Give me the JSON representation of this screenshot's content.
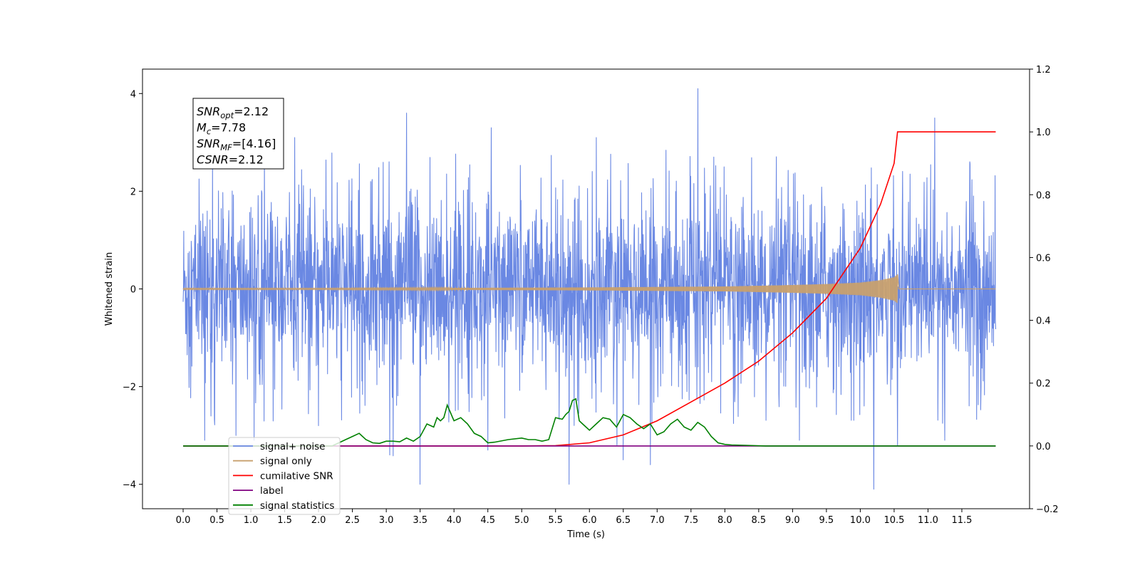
{
  "chart_data": {
    "type": "line",
    "xlabel": "Time (s)",
    "ylabel": "Whitened strain",
    "xlim": [
      -0.6,
      12.5
    ],
    "ylim": [
      -4.5,
      4.5
    ],
    "y2lim": [
      -0.2,
      1.2
    ],
    "x_ticks": [
      "0.0",
      "0.5",
      "1.0",
      "1.5",
      "2.0",
      "2.5",
      "3.0",
      "3.5",
      "4.0",
      "4.5",
      "5.0",
      "5.5",
      "6.0",
      "6.5",
      "7.0",
      "7.5",
      "8.0",
      "8.5",
      "9.0",
      "9.5",
      "10.0",
      "10.5",
      "11.0",
      "11.5"
    ],
    "y_ticks": [
      "−4",
      "−2",
      "0",
      "2",
      "4"
    ],
    "y2_ticks": [
      "−0.2",
      "0.0",
      "0.2",
      "0.4",
      "0.6",
      "0.8",
      "1.0",
      "1.2"
    ],
    "grid": false,
    "legend_position": "lower-left",
    "annotation": {
      "lines": [
        {
          "sym": "SNR",
          "sub": "opt",
          "value": "=2.12"
        },
        {
          "sym": "M",
          "sub": "c",
          "value": "=7.78"
        },
        {
          "sym": "SNR",
          "sub": "MF",
          "value": "=[4.16]"
        },
        {
          "sym": "CSNR",
          "sub": "",
          "value": "=2.12"
        }
      ]
    },
    "series": [
      {
        "name": "signal+ noise",
        "color": "#6a88e3",
        "axis": "left",
        "x_range": [
          0.0,
          12.0
        ],
        "peaks": [
          {
            "x": 0.32,
            "y": -3.1
          },
          {
            "x": 0.78,
            "y": -3.0
          },
          {
            "x": 1.05,
            "y": -3.1
          },
          {
            "x": 1.2,
            "y": 2.9
          },
          {
            "x": 1.65,
            "y": 3.1
          },
          {
            "x": 2.0,
            "y": -2.8
          },
          {
            "x": 3.05,
            "y": -3.4
          },
          {
            "x": 3.3,
            "y": 3.6
          },
          {
            "x": 3.5,
            "y": -4.0
          },
          {
            "x": 4.55,
            "y": 3.3
          },
          {
            "x": 4.5,
            "y": -3.3
          },
          {
            "x": 5.7,
            "y": -4.0
          },
          {
            "x": 6.1,
            "y": 3.1
          },
          {
            "x": 6.5,
            "y": -3.5
          },
          {
            "x": 6.9,
            "y": -3.6
          },
          {
            "x": 7.6,
            "y": 4.1
          },
          {
            "x": 9.1,
            "y": -3.1
          },
          {
            "x": 10.2,
            "y": -4.1
          },
          {
            "x": 10.55,
            "y": -3.2
          },
          {
            "x": 11.1,
            "y": 3.5
          },
          {
            "x": 11.25,
            "y": -3.1
          }
        ]
      },
      {
        "name": "signal only",
        "color": "#c8a06e",
        "axis": "left",
        "x": [
          0.0,
          2.0,
          4.0,
          6.0,
          8.0,
          9.0,
          9.5,
          10.0,
          10.3,
          10.5,
          10.55
        ],
        "amplitude": [
          0.01,
          0.01,
          0.02,
          0.03,
          0.05,
          0.08,
          0.1,
          0.13,
          0.18,
          0.24,
          0.3
        ]
      },
      {
        "name": "cumilative SNR",
        "color": "#ff0000",
        "axis": "right",
        "x": [
          0.0,
          5.0,
          5.5,
          6.0,
          6.5,
          7.0,
          7.5,
          8.0,
          8.5,
          9.0,
          9.5,
          10.0,
          10.3,
          10.5,
          10.55,
          11.0,
          12.0
        ],
        "values": [
          0.0,
          0.0,
          0.001,
          0.01,
          0.035,
          0.08,
          0.14,
          0.2,
          0.27,
          0.36,
          0.47,
          0.63,
          0.77,
          0.9,
          1.0,
          1.0,
          1.0
        ]
      },
      {
        "name": "label",
        "color": "#800080",
        "axis": "right",
        "x": [
          0.0,
          12.0
        ],
        "values": [
          0.0,
          0.0
        ]
      },
      {
        "name": "signal statistics",
        "color": "#008000",
        "axis": "right",
        "x": [
          0.0,
          2.2,
          2.3,
          2.4,
          2.5,
          2.6,
          2.7,
          2.8,
          2.9,
          3.0,
          3.1,
          3.2,
          3.3,
          3.4,
          3.5,
          3.6,
          3.7,
          3.75,
          3.8,
          3.85,
          3.9,
          4.0,
          4.1,
          4.2,
          4.3,
          4.4,
          4.5,
          4.6,
          4.8,
          5.0,
          5.1,
          5.2,
          5.3,
          5.4,
          5.5,
          5.6,
          5.65,
          5.7,
          5.75,
          5.8,
          5.85,
          5.9,
          6.0,
          6.1,
          6.2,
          6.3,
          6.4,
          6.5,
          6.6,
          6.7,
          6.8,
          6.9,
          7.0,
          7.1,
          7.2,
          7.3,
          7.4,
          7.5,
          7.6,
          7.7,
          7.8,
          7.9,
          8.0,
          8.1,
          8.3,
          8.6,
          9.0,
          12.0
        ],
        "values": [
          0.0,
          0.0,
          0.01,
          0.02,
          0.03,
          0.04,
          0.02,
          0.01,
          0.008,
          0.015,
          0.015,
          0.013,
          0.025,
          0.015,
          0.03,
          0.07,
          0.06,
          0.09,
          0.08,
          0.09,
          0.13,
          0.08,
          0.09,
          0.07,
          0.04,
          0.03,
          0.01,
          0.012,
          0.02,
          0.025,
          0.02,
          0.02,
          0.015,
          0.02,
          0.09,
          0.085,
          0.1,
          0.11,
          0.145,
          0.15,
          0.08,
          0.07,
          0.05,
          0.07,
          0.09,
          0.085,
          0.06,
          0.1,
          0.09,
          0.07,
          0.055,
          0.07,
          0.035,
          0.045,
          0.07,
          0.085,
          0.06,
          0.05,
          0.075,
          0.06,
          0.03,
          0.01,
          0.005,
          0.003,
          0.002,
          0.0,
          0.0,
          0.0
        ]
      }
    ]
  }
}
